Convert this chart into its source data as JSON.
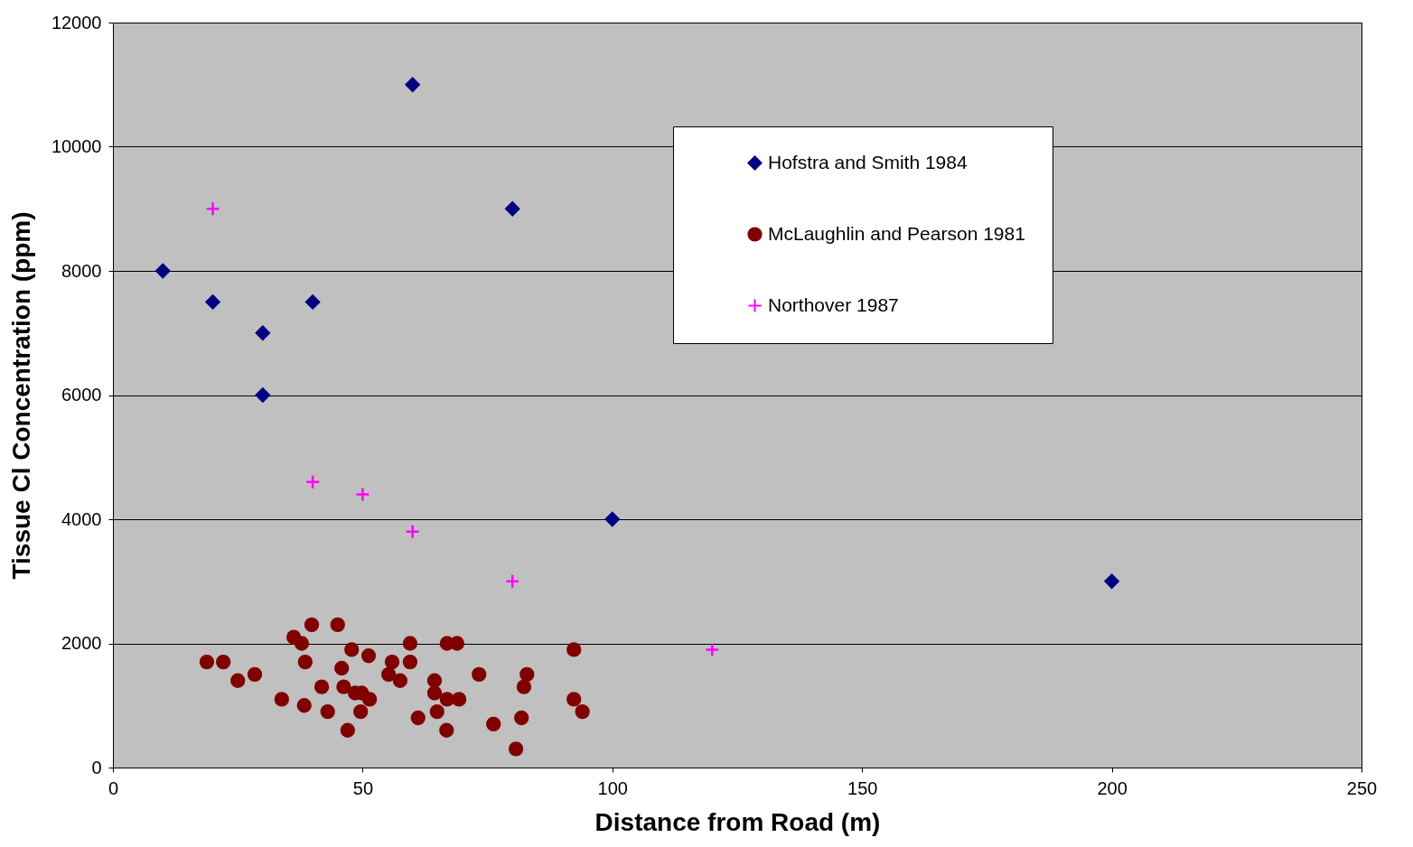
{
  "chart_data": {
    "type": "scatter",
    "xlabel": "Distance from Road (m)",
    "ylabel": "Tissue Cl Concentration (ppm)",
    "xlim": [
      0,
      250
    ],
    "xticks": [
      0,
      50,
      100,
      150,
      200,
      250
    ],
    "ylim": [
      0,
      12000
    ],
    "yticks": [
      0,
      2000,
      4000,
      6000,
      8000,
      10000,
      12000
    ],
    "grid": "y",
    "legend": "top right",
    "series": [
      {
        "name": "Hofstra and Smith 1984",
        "color": "#000080",
        "marker": "diamond",
        "x": [
          10,
          20,
          30,
          30,
          40,
          60,
          80,
          100,
          200
        ],
        "values": [
          8000,
          7500,
          6000,
          7000,
          7500,
          11000,
          9000,
          4000,
          3000
        ]
      },
      {
        "name": "McLaughlin and Pearson 1981",
        "color": "#800000",
        "marker": "circle",
        "x": [
          18.8,
          22.1,
          25,
          28.4,
          33.8,
          36.2,
          37.8,
          39.8,
          38.5,
          38.3,
          41.8,
          43,
          45,
          45.8,
          46.2,
          47,
          47.8,
          48.5,
          49.8,
          49.6,
          51.2,
          51.4,
          55.2,
          55.9,
          57.5,
          59.5,
          59.5,
          61.1,
          64.4,
          64.4,
          64.9,
          66.9,
          66.9,
          66.8,
          68.9,
          69.3,
          73.3,
          76.2,
          80.7,
          81.8,
          82.3,
          82.9,
          92.3,
          92.3,
          94
        ],
        "values": [
          1700,
          1700,
          1400,
          1500,
          1100,
          2100,
          2000,
          2300,
          1700,
          1000,
          1300,
          900,
          2300,
          1600,
          1300,
          600,
          1900,
          1200,
          1200,
          900,
          1800,
          1100,
          1500,
          1700,
          1400,
          2000,
          1700,
          800,
          1400,
          1200,
          900,
          2000,
          1100,
          600,
          2000,
          1100,
          1500,
          700,
          300,
          800,
          1300,
          1500,
          1900,
          1100,
          900
        ]
      },
      {
        "name": "Northover 1987",
        "color": "#ff00ff",
        "marker": "cross",
        "x": [
          20,
          40,
          50,
          60,
          80,
          120
        ],
        "values": [
          9000,
          4600,
          4400,
          3800,
          3000,
          1900
        ]
      }
    ]
  }
}
